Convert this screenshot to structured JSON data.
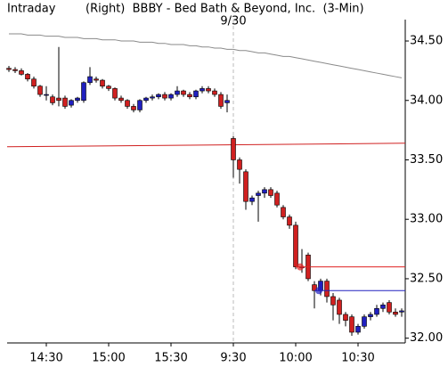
{
  "chart_data": {
    "type": "candlestick",
    "title": "Intraday",
    "subtitle": "(Right)  BBBY - Bed Bath & Beyond, Inc.  (3-Min)",
    "date_marker": {
      "text": "9/30",
      "category": "9:30"
    },
    "categories": [
      null,
      null,
      null,
      null,
      null,
      null,
      "14:30",
      null,
      null,
      null,
      null,
      null,
      null,
      null,
      null,
      null,
      "15:00",
      null,
      null,
      null,
      null,
      null,
      null,
      null,
      null,
      null,
      "15:30",
      null,
      null,
      null,
      null,
      null,
      null,
      null,
      null,
      null,
      "9:30",
      null,
      null,
      null,
      null,
      null,
      null,
      null,
      null,
      null,
      "10:00",
      null,
      null,
      null,
      null,
      null,
      null,
      null,
      null,
      null,
      "10:30",
      null,
      null,
      null,
      null,
      null,
      null,
      null
    ],
    "open": [
      34.27,
      34.26,
      34.25,
      34.22,
      34.18,
      34.12,
      34.05,
      34.03,
      34.02,
      34.02,
      33.96,
      34.0,
      34.0,
      34.15,
      34.18,
      34.17,
      34.12,
      34.1,
      34.02,
      34.0,
      33.95,
      33.92,
      34.0,
      34.02,
      34.03,
      34.05,
      34.02,
      34.05,
      34.08,
      34.05,
      34.03,
      34.08,
      34.1,
      34.08,
      34.05,
      33.98,
      33.68,
      33.5,
      33.4,
      33.15,
      33.2,
      33.22,
      33.25,
      33.22,
      33.1,
      33.02,
      32.95,
      32.6,
      32.7,
      32.45,
      32.4,
      32.48,
      32.35,
      32.32,
      32.2,
      32.18,
      32.05,
      32.1,
      32.18,
      32.2,
      32.25,
      32.3,
      32.22,
      32.22
    ],
    "high": [
      34.29,
      34.28,
      34.27,
      34.23,
      34.2,
      34.13,
      34.12,
      34.05,
      34.45,
      34.04,
      34.01,
      34.03,
      34.16,
      34.28,
      34.2,
      34.18,
      34.13,
      34.11,
      34.04,
      34.01,
      33.97,
      34.01,
      34.03,
      34.05,
      34.06,
      34.07,
      34.06,
      34.12,
      34.09,
      34.07,
      34.09,
      34.12,
      34.12,
      34.1,
      34.07,
      34.05,
      33.7,
      33.52,
      33.42,
      33.2,
      33.24,
      33.27,
      33.27,
      33.24,
      33.12,
      33.04,
      32.98,
      32.75,
      32.72,
      32.48,
      32.5,
      32.5,
      32.38,
      32.34,
      32.22,
      32.2,
      32.12,
      32.2,
      32.22,
      32.28,
      32.3,
      32.32,
      32.25,
      32.25
    ],
    "low": [
      34.24,
      34.23,
      34.21,
      34.16,
      34.1,
      34.03,
      34.0,
      33.96,
      33.95,
      33.93,
      33.94,
      33.98,
      33.98,
      34.13,
      34.15,
      34.1,
      34.08,
      34.0,
      33.98,
      33.93,
      33.9,
      33.9,
      33.98,
      34.0,
      34.01,
      34.0,
      34.0,
      34.03,
      34.03,
      34.01,
      34.01,
      34.06,
      34.06,
      34.03,
      33.93,
      33.9,
      33.35,
      33.3,
      33.08,
      33.12,
      32.98,
      33.18,
      33.18,
      33.1,
      33.0,
      32.92,
      32.58,
      32.55,
      32.48,
      32.25,
      32.36,
      32.3,
      32.15,
      32.12,
      32.1,
      32.02,
      32.03,
      32.08,
      32.15,
      32.18,
      32.22,
      32.2,
      32.18,
      32.18
    ],
    "close": [
      34.26,
      34.25,
      34.22,
      34.18,
      34.12,
      34.05,
      34.05,
      33.98,
      34.0,
      33.95,
      34.0,
      34.02,
      34.15,
      34.2,
      34.17,
      34.12,
      34.1,
      34.02,
      34.0,
      33.95,
      33.92,
      34.0,
      34.02,
      34.03,
      34.05,
      34.02,
      34.05,
      34.08,
      34.05,
      34.03,
      34.08,
      34.1,
      34.08,
      34.05,
      33.95,
      34.0,
      33.5,
      33.42,
      33.15,
      33.18,
      33.22,
      33.25,
      33.2,
      33.12,
      33.02,
      32.95,
      32.6,
      32.6,
      32.5,
      32.4,
      32.48,
      32.35,
      32.28,
      32.2,
      32.15,
      32.05,
      32.1,
      32.18,
      32.2,
      32.25,
      32.28,
      32.22,
      32.2,
      32.23
    ],
    "up_color": "#2020c0",
    "down_color": "#d02020",
    "moving_average": {
      "color": "#8a8a8a",
      "values": [
        34.56,
        34.56,
        34.56,
        34.55,
        34.55,
        34.55,
        34.54,
        34.54,
        34.54,
        34.53,
        34.53,
        34.53,
        34.52,
        34.52,
        34.52,
        34.51,
        34.51,
        34.51,
        34.5,
        34.5,
        34.5,
        34.49,
        34.49,
        34.49,
        34.48,
        34.48,
        34.47,
        34.47,
        34.47,
        34.46,
        34.46,
        34.45,
        34.45,
        34.44,
        34.44,
        34.43,
        34.43,
        34.42,
        34.42,
        34.41,
        34.4,
        34.4,
        34.39,
        34.38,
        34.37,
        34.37,
        34.36,
        34.35,
        34.34,
        34.33,
        34.32,
        34.31,
        34.3,
        34.29,
        34.28,
        34.27,
        34.26,
        34.25,
        34.24,
        34.23,
        34.22,
        34.21,
        34.2,
        34.19
      ]
    },
    "reference_line": {
      "color": "#d02020",
      "values": [
        33.61,
        33.64
      ]
    },
    "levels": [
      {
        "value": 32.6,
        "color": "#e02020"
      },
      {
        "value": 32.4,
        "color": "#2020c0"
      }
    ],
    "ylim": [
      31.96,
      34.68
    ],
    "yticks": [
      {
        "value": 32,
        "label": "32.00"
      },
      {
        "value": 32.5,
        "label": "32.50"
      },
      {
        "value": 33,
        "label": "33.00"
      },
      {
        "value": 33.5,
        "label": "33.50"
      },
      {
        "value": 34,
        "label": "34.00"
      },
      {
        "value": 34.5,
        "label": "34.50"
      }
    ]
  }
}
